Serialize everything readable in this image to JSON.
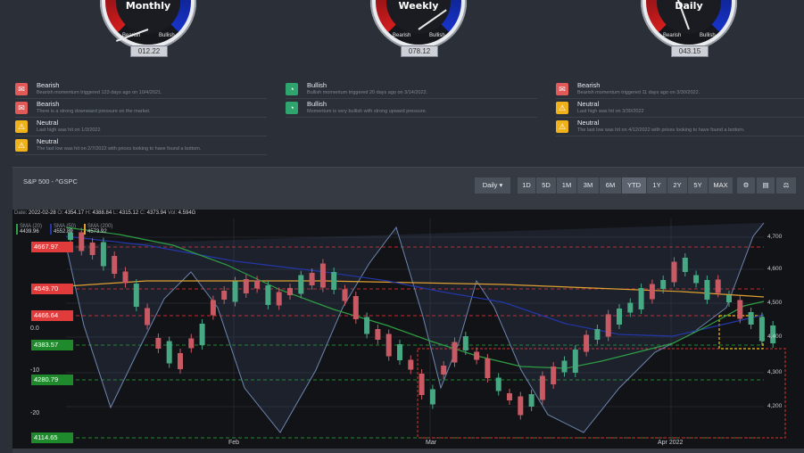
{
  "gauges": [
    {
      "title": "Monthly",
      "bearish": "Bearish",
      "bullish": "Bullish",
      "reading": "012.22",
      "pointer": 0.12
    },
    {
      "title": "Weekly",
      "bearish": "Bearish",
      "bullish": "Bullish",
      "reading": "078.12",
      "pointer": 0.78
    },
    {
      "title": "Daily",
      "bearish": "Bearish",
      "bullish": "Bullish",
      "reading": "043.15",
      "pointer": 0.43
    }
  ],
  "signals": {
    "monthly": [
      {
        "type": "red",
        "icon": "chat-icon",
        "head": "Bearish",
        "desc": "Bearish momentum triggered 123 days ago on 10/4/2021."
      },
      {
        "type": "red",
        "icon": "chat-icon",
        "head": "Bearish",
        "desc": "There is a strong downward pressure on the market."
      },
      {
        "type": "amber",
        "icon": "caution-icon",
        "head": "Neutral",
        "desc": "Last high was hit on 1/3/2022"
      },
      {
        "type": "amber",
        "icon": "caution-icon",
        "head": "Neutral",
        "desc": "The last low was hit on 2/7/2022 with prices looking to have found a bottom."
      }
    ],
    "weekly": [
      {
        "type": "green",
        "icon": "gauge-icon",
        "head": "Bullish",
        "desc": "Bullish momentum triggered 20 days ago on 3/14/2022."
      },
      {
        "type": "green",
        "icon": "gauge-icon",
        "head": "Bullish",
        "desc": "Momentum is very bullish with strong upward pressure."
      }
    ],
    "daily": [
      {
        "type": "red",
        "icon": "chat-icon",
        "head": "Bearish",
        "desc": "Bearish momentum triggered 11 days ago on 3/30/2022."
      },
      {
        "type": "amber",
        "icon": "caution-icon",
        "head": "Neutral",
        "desc": "Last high was hit on 3/30/2022"
      },
      {
        "type": "amber",
        "icon": "caution-icon",
        "head": "Neutral",
        "desc": "The last low was hit on 4/12/2022 with prices looking to have found a bottom."
      }
    ]
  },
  "panel": {
    "title": "S&P 500 - ^GSPC",
    "interval": "Daily",
    "ranges": [
      "1D",
      "5D",
      "1M",
      "3M",
      "6M",
      "YTD",
      "1Y",
      "2Y",
      "5Y",
      "MAX"
    ],
    "active_range": "YTD",
    "tools": [
      "settings-icon",
      "calculator-icon",
      "balance-icon"
    ]
  },
  "ohlc": {
    "date_label": "Date",
    "date": "2022-02-28",
    "o_label": "O",
    "o": "4354.17",
    "h_label": "H",
    "h": "4388.84",
    "l_label": "L",
    "l": "4315.12",
    "c_label": "C",
    "c": "4373.94",
    "vol_label": "Vol",
    "vol": "4.594G"
  },
  "sma": [
    {
      "name": "SMA (20)",
      "value": "4439.96",
      "color": "#2f9e44"
    },
    {
      "name": "SMA (50)",
      "value": "4552.89",
      "color": "#2437a8"
    },
    {
      "name": "SMA (200)",
      "value": "4573.92",
      "color": "#e0a030"
    }
  ],
  "price_levels": [
    {
      "label": "4667.97",
      "color": "#e23b3b"
    },
    {
      "label": "4549.70",
      "color": "#e23b3b"
    },
    {
      "label": "4466.64",
      "color": "#e23b3b"
    },
    {
      "label": "4383.57",
      "color": "#1f8a2c"
    },
    {
      "label": "4280.79",
      "color": "#1f8a2c"
    },
    {
      "label": "4114.65",
      "color": "#1f8a2c"
    }
  ],
  "osc_axis": [
    "0.0",
    "-10",
    "-20"
  ],
  "chart_data": {
    "type": "candlestick",
    "y_axis": [
      "4,700",
      "4,600",
      "4,500",
      "4,400",
      "4,300",
      "4,200"
    ],
    "x_axis": [
      "Feb",
      "Mar",
      "Apr 2022"
    ]
  }
}
